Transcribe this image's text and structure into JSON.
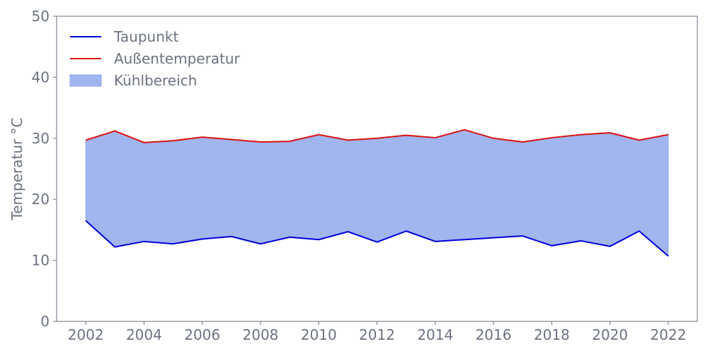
{
  "chart_data": {
    "type": "area",
    "title": "",
    "xlabel": "",
    "ylabel": "Temperatur °C",
    "x": [
      2002,
      2003,
      2004,
      2005,
      2006,
      2007,
      2008,
      2009,
      2010,
      2011,
      2012,
      2013,
      2014,
      2015,
      2016,
      2017,
      2018,
      2019,
      2020,
      2021,
      2022
    ],
    "xlim": [
      2001,
      2023
    ],
    "ylim": [
      0,
      50
    ],
    "xticks": [
      2002,
      2004,
      2006,
      2008,
      2010,
      2012,
      2014,
      2016,
      2018,
      2020,
      2022
    ],
    "yticks": [
      0,
      10,
      20,
      30,
      40,
      50
    ],
    "grid": false,
    "legend_position": "top-left",
    "series": [
      {
        "name": "Taupunkt",
        "color": "#0000dd",
        "values": [
          16.5,
          12.2,
          13.1,
          12.7,
          13.5,
          13.9,
          12.7,
          13.8,
          13.4,
          14.7,
          13.0,
          14.8,
          13.1,
          13.4,
          13.7,
          14.0,
          12.4,
          13.2,
          12.3,
          14.8,
          10.7
        ]
      },
      {
        "name": "Außentemperatur",
        "color": "#dd1111",
        "values": [
          29.7,
          31.2,
          29.3,
          29.6,
          30.2,
          29.8,
          29.4,
          29.5,
          30.6,
          29.7,
          30.0,
          30.5,
          30.1,
          31.4,
          30.0,
          29.4,
          30.1,
          30.6,
          30.9,
          29.7,
          30.6
        ]
      }
    ],
    "fill_between": {
      "name": "Kühlbereich",
      "color": "#a1b5ef",
      "edge_color": "#8ea4ea"
    },
    "axis_color": "#6b7280"
  }
}
